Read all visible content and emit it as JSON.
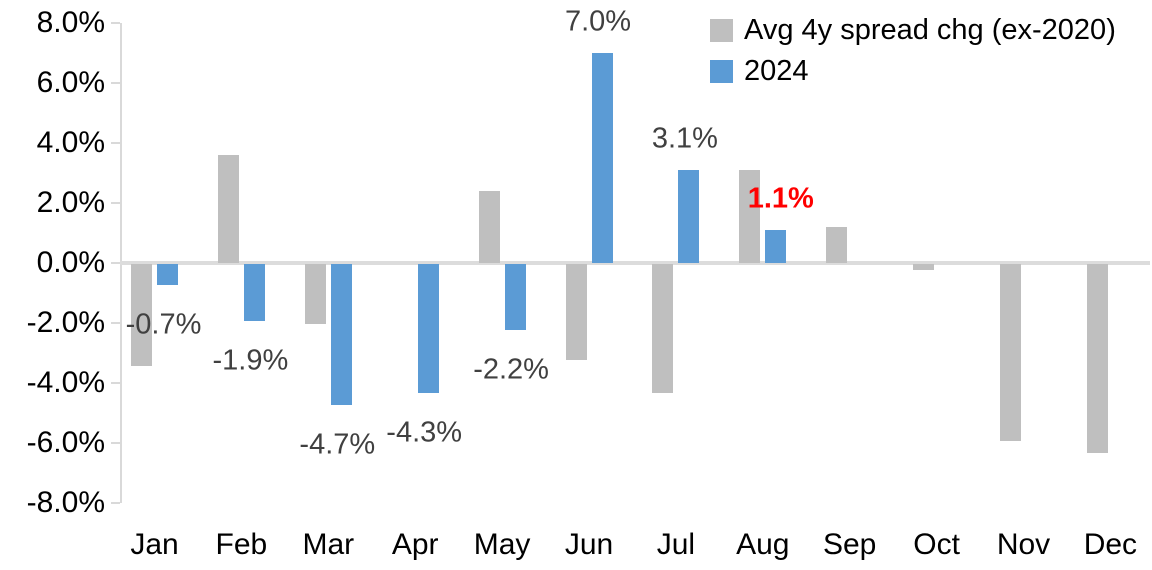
{
  "chart_data": {
    "type": "bar",
    "title": "",
    "xlabel": "",
    "ylabel": "",
    "grid": false,
    "legend_position": "top-right",
    "categories": [
      "Jan",
      "Feb",
      "Mar",
      "Apr",
      "May",
      "Jun",
      "Jul",
      "Aug",
      "Sep",
      "Oct",
      "Nov",
      "Dec"
    ],
    "y_axis": {
      "min": -8.0,
      "max": 8.0,
      "step": 2.0,
      "tick_labels": [
        "8.0%",
        "6.0%",
        "4.0%",
        "2.0%",
        "0.0%",
        "-2.0%",
        "-4.0%",
        "-6.0%",
        "-8.0%"
      ]
    },
    "series": [
      {
        "name": "Avg 4y spread chg (ex-2020)",
        "color": "#bfbfbf",
        "values": [
          -3.4,
          3.6,
          -2.0,
          0.0,
          2.4,
          -3.2,
          -4.3,
          3.1,
          1.2,
          -0.2,
          -5.9,
          -6.3
        ]
      },
      {
        "name": "2024",
        "color": "#5b9bd5",
        "values": [
          -0.7,
          -1.9,
          -4.7,
          -4.3,
          -2.2,
          7.0,
          3.1,
          1.1,
          null,
          null,
          null,
          null
        ]
      }
    ],
    "data_labels": [
      {
        "text": "-0.7%",
        "month": 0,
        "series": 1,
        "color": "#404040",
        "bold": false
      },
      {
        "text": "-1.9%",
        "month": 1,
        "series": 1,
        "color": "#404040",
        "bold": false
      },
      {
        "text": "-4.7%",
        "month": 2,
        "series": 1,
        "color": "#404040",
        "bold": false
      },
      {
        "text": "-4.3%",
        "month": 3,
        "series": 1,
        "color": "#404040",
        "bold": false
      },
      {
        "text": "-2.2%",
        "month": 4,
        "series": 1,
        "color": "#404040",
        "bold": false
      },
      {
        "text": "7.0%",
        "month": 5,
        "series": 1,
        "color": "#404040",
        "bold": false
      },
      {
        "text": "3.1%",
        "month": 6,
        "series": 1,
        "color": "#404040",
        "bold": false
      },
      {
        "text": "1.1%",
        "month": 7,
        "series": 1,
        "color": "#FF0000",
        "bold": true
      }
    ]
  },
  "colors": {
    "axis_line": "#d9d9d9",
    "zero_line": "#dcdcdc",
    "tick_text": "#000000",
    "data_label_text": "#404040",
    "highlight_label_text": "#FF0000",
    "series_avg": "#bfbfbf",
    "series_2024": "#5b9bd5"
  }
}
